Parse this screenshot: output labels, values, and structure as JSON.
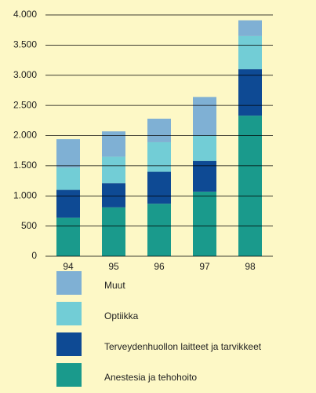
{
  "chart_data": {
    "type": "stacked-bar",
    "categories": [
      "94",
      "95",
      "96",
      "97",
      "98"
    ],
    "series": [
      {
        "name": "Anestesia ja tehohoito",
        "color": "#1a9a8c",
        "values": [
          640,
          810,
          870,
          1070,
          2330
        ]
      },
      {
        "name": "Terveydenhuollon laitteet ja tarvikkeet",
        "color": "#0e4a94",
        "values": [
          460,
          400,
          530,
          510,
          770
        ]
      },
      {
        "name": "Optiikka",
        "color": "#72cdd6",
        "values": [
          370,
          440,
          490,
          420,
          550
        ]
      },
      {
        "name": "Muut",
        "color": "#7fb0d4",
        "values": [
          470,
          420,
          390,
          640,
          260
        ]
      }
    ],
    "ylim": [
      0,
      4000
    ],
    "yticks": [
      0,
      500,
      {
        "value": 1000,
        "label": "1.000"
      },
      {
        "value": 1500,
        "label": "1.500"
      },
      {
        "value": 2000,
        "label": "2.000"
      },
      {
        "value": 2500,
        "label": "2.500"
      },
      {
        "value": 3000,
        "label": "3.000"
      },
      {
        "value": 3500,
        "label": "3.500"
      },
      {
        "value": 4000,
        "label": "4.000"
      }
    ],
    "grid": true
  }
}
